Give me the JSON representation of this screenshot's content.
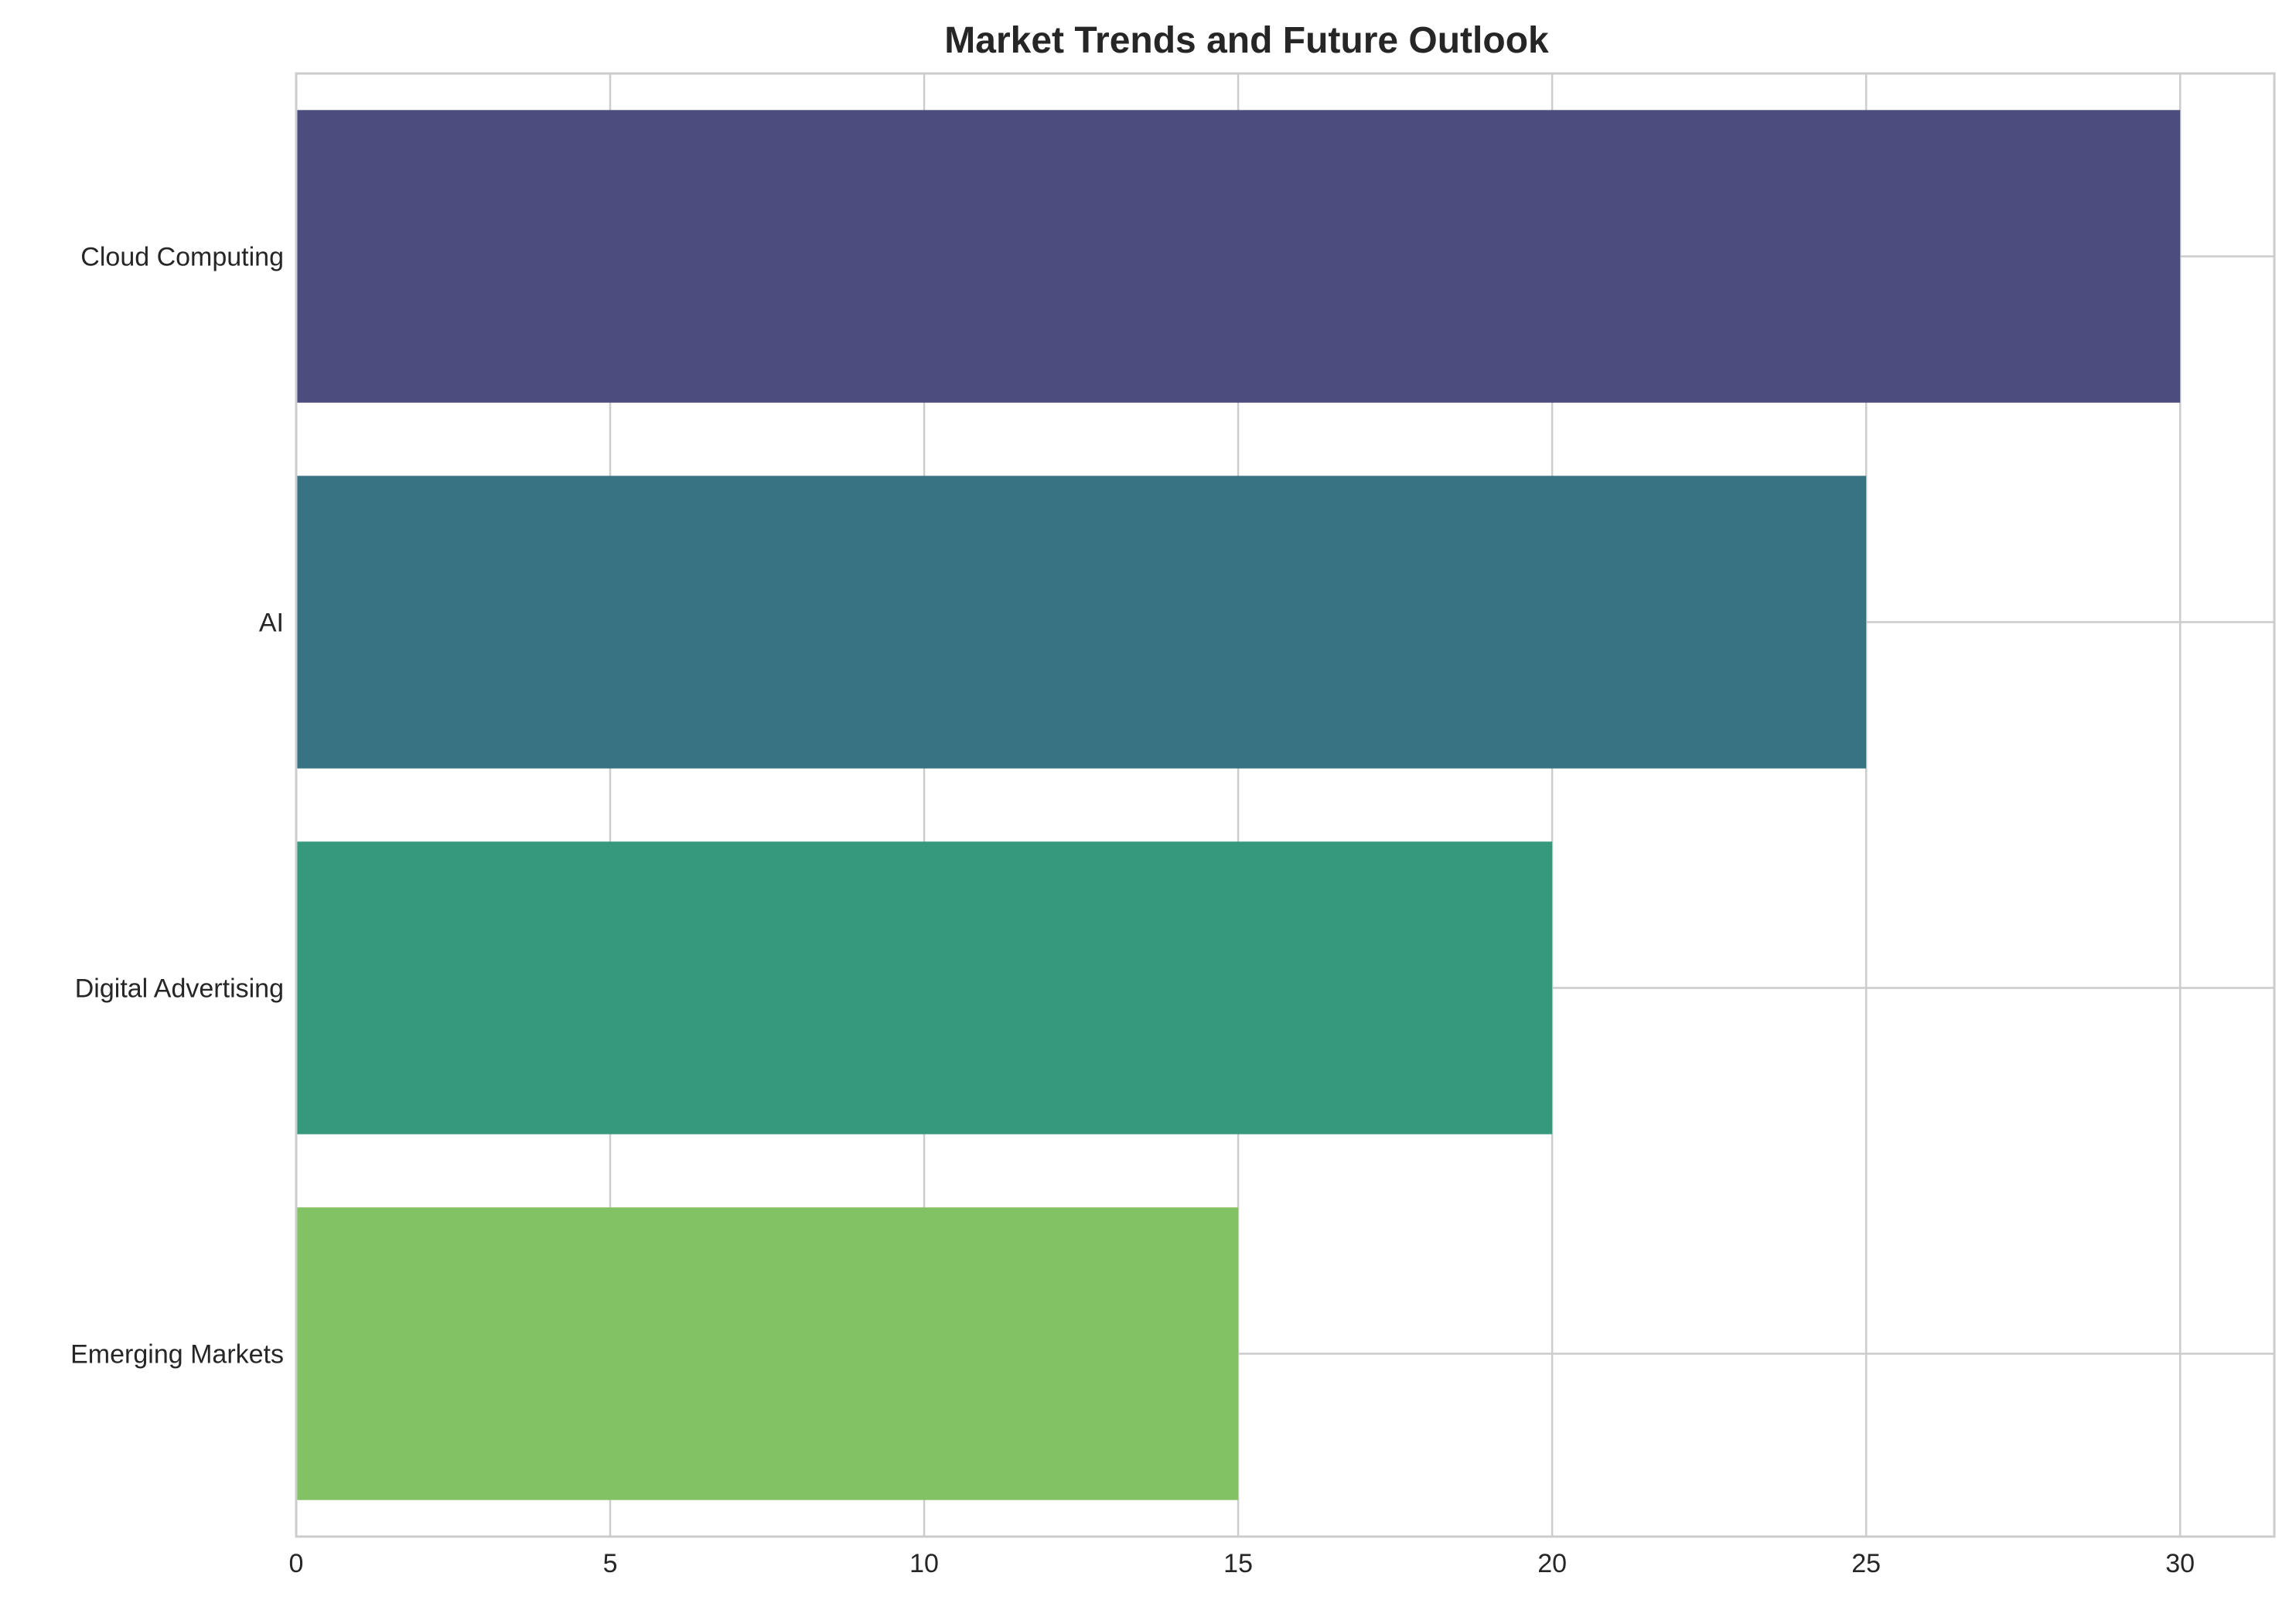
{
  "chart_data": {
    "type": "bar",
    "orientation": "horizontal",
    "title": "Market Trends and Future Outlook",
    "xlabel": "",
    "ylabel": "",
    "categories": [
      "Cloud Computing",
      "AI",
      "Digital Advertising",
      "Emerging Markets"
    ],
    "values": [
      30,
      25,
      20,
      15
    ],
    "colors": [
      "#4b4d7e",
      "#377382",
      "#36987c",
      "#83c264"
    ],
    "xlim": [
      0,
      31.5
    ],
    "xticks": [
      0,
      5,
      10,
      15,
      20,
      25,
      30
    ],
    "grid": true,
    "legend": "none"
  },
  "styles": {
    "grid_color": "#cccccc",
    "text_color": "#262626",
    "background": "#ffffff"
  }
}
